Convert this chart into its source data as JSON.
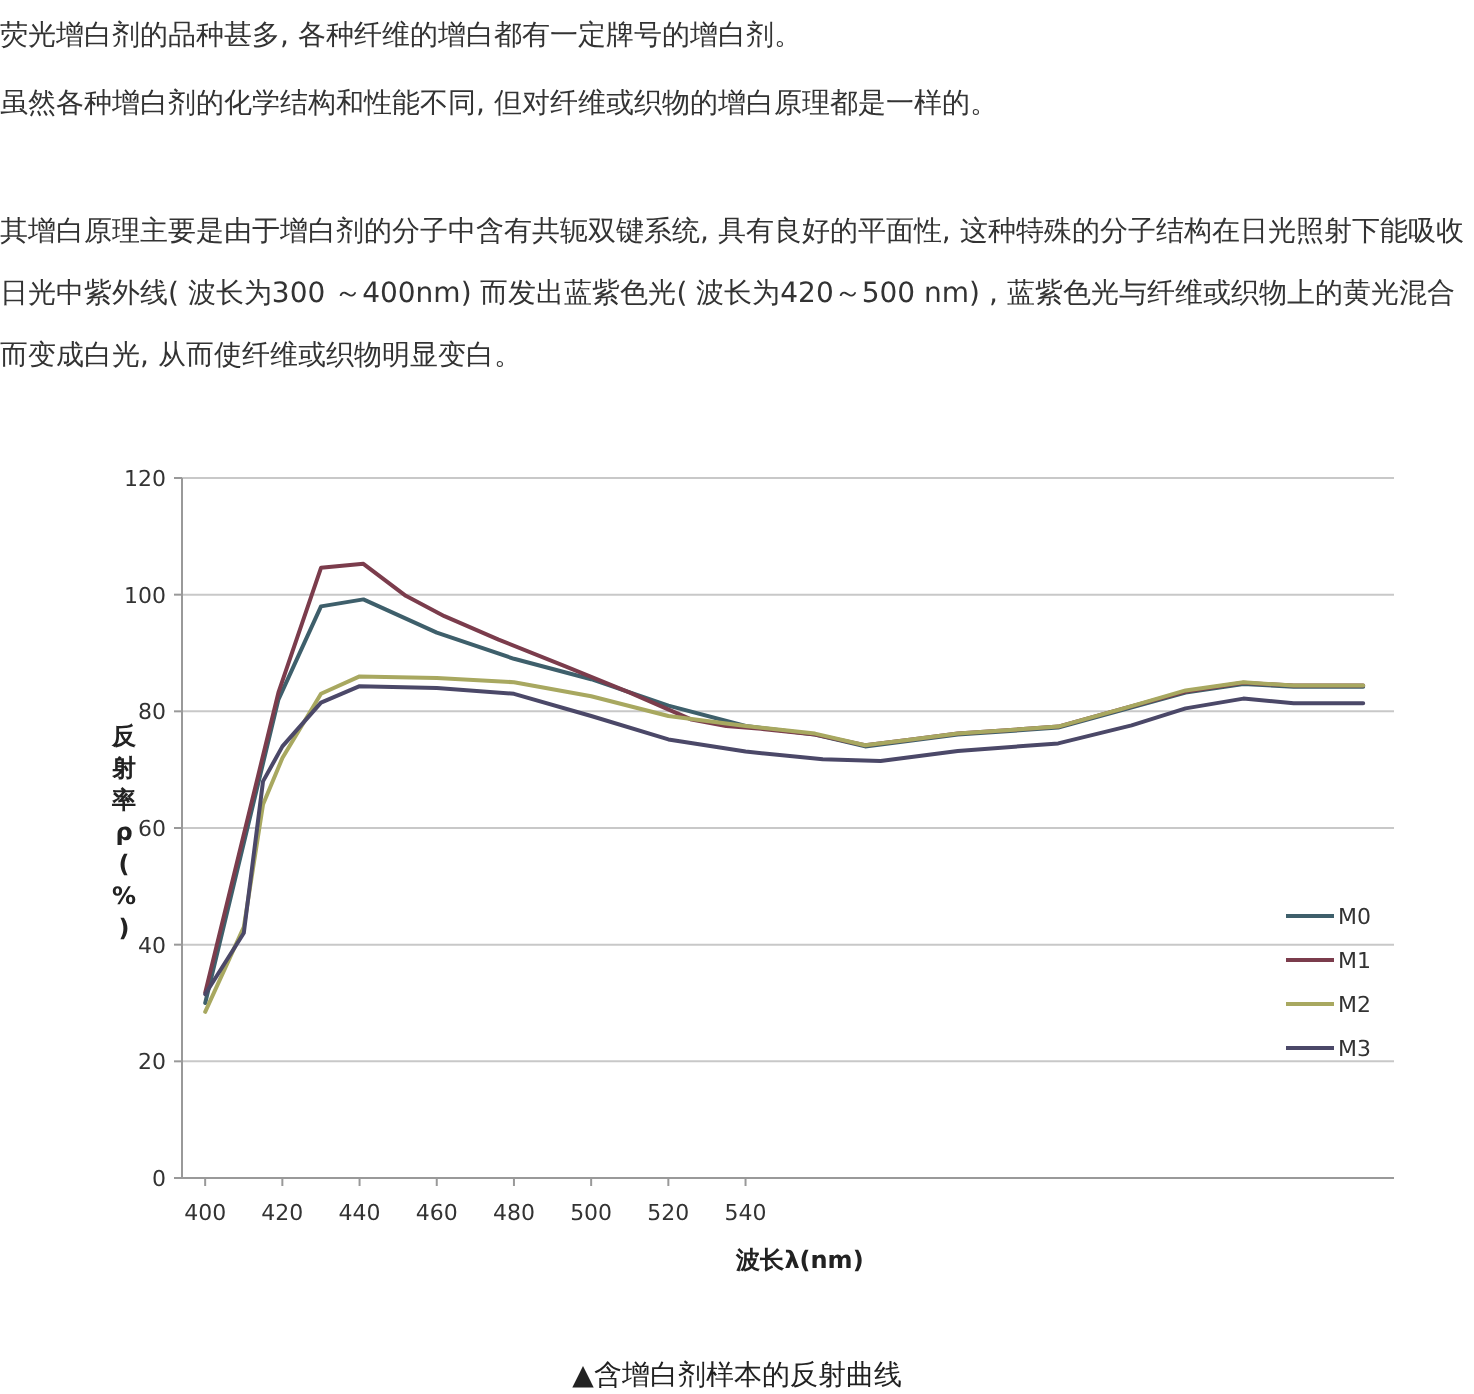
{
  "chart_data": {
    "type": "line",
    "annotations": [
      "荧光增白剂的品种甚多, 各种纤维的增白都有一定牌号的增白剂。",
      "虽然各种增白剂的化学结构和性能不同, 但对纤维或织物的增白原理都是一样的。",
      "其增白原理主要是由于增白剂的分子中含有共轭双键系统, 具有良好的平面性, 这种特殊的分子结构在日光照射下能吸收日光中紫外线( 波长为300 ～400nm) 而发出蓝紫色光( 波长为420～500 nm) , 蓝紫色光与纤维或织物上的黄光混合而变成白光, 从而使纤维或织物明显变白。",
      "▲含增白剂样本的反射曲线"
    ],
    "xlabel": "波长λ(nm)",
    "ylabel": "反射率ρ(%)",
    "xlim": [
      394,
      708
    ],
    "xticks": [
      400,
      420,
      440,
      460,
      480,
      500,
      520,
      540
    ],
    "ylim": [
      0,
      120
    ],
    "yticks": [
      0,
      20,
      40,
      60,
      80,
      100,
      120
    ],
    "grid": "y",
    "legend": "right",
    "line_style": "solid",
    "marker": "none",
    "series": [
      {
        "name": "M0",
        "color": "#3e5f6b",
        "x": [
          400,
          419,
          430,
          441,
          460,
          480,
          500,
          520,
          540,
          558,
          571,
          583,
          595,
          621,
          638,
          654,
          669,
          682,
          700
        ],
        "values": [
          30,
          82,
          98,
          99.2,
          93.5,
          89,
          85.5,
          81,
          77.5,
          76,
          74,
          75,
          76,
          77.2,
          80.3,
          83.2,
          84.7,
          84.2,
          84.2
        ]
      },
      {
        "name": "M1",
        "color": "#7b3c4c",
        "x": [
          400,
          419,
          430,
          441,
          452,
          462,
          476,
          493,
          510,
          526,
          535,
          544,
          558,
          571,
          583,
          595,
          621,
          638,
          654,
          669,
          682,
          700
        ],
        "values": [
          31.8,
          83.2,
          104.6,
          105.3,
          99.8,
          96.3,
          92.3,
          87.8,
          83.2,
          78.6,
          77.5,
          77,
          76,
          74.2,
          75.2,
          76.2,
          77.4,
          80.5,
          83.4,
          84.9,
          84.4,
          84.4
        ]
      },
      {
        "name": "M2",
        "color": "#a8a860",
        "x": [
          400,
          410,
          415,
          420,
          430,
          440,
          460,
          480,
          500,
          520,
          540,
          558,
          571,
          583,
          595,
          621,
          638,
          654,
          669,
          682,
          700
        ],
        "values": [
          28.5,
          43,
          64,
          72,
          83,
          86,
          85.7,
          85,
          82.6,
          79.2,
          77.5,
          76.2,
          74.2,
          75.2,
          76.2,
          77.4,
          80.5,
          83.6,
          85,
          84.4,
          84.4
        ]
      },
      {
        "name": "M3",
        "color": "#4b4868",
        "x": [
          400,
          410,
          415,
          420,
          430,
          440,
          460,
          480,
          500,
          520,
          540,
          560,
          575,
          595,
          621,
          640,
          654,
          669,
          682,
          700
        ],
        "values": [
          31.5,
          42,
          68,
          74,
          81.5,
          84.3,
          84,
          83,
          79.2,
          75.2,
          73.1,
          71.8,
          71.5,
          73.2,
          74.5,
          77.6,
          80.5,
          82.2,
          81.4,
          81.4
        ]
      }
    ]
  }
}
